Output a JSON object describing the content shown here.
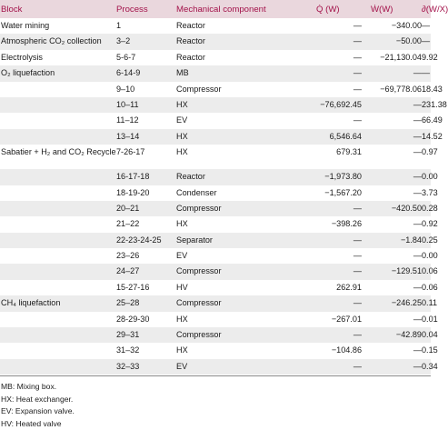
{
  "headers": {
    "block": "Block",
    "process": "Process",
    "mechanical": "Mechanical component",
    "q": "Q̇ (W)",
    "w": "Ẇ(W)",
    "ratio": "∂(W/X)"
  },
  "rows": [
    {
      "block": "Water mining",
      "process": "1",
      "mech": "Reactor",
      "q": "—",
      "w": "−340.00",
      "r": "—"
    },
    {
      "block": "Atmospheric CO₂ collection",
      "process": "3–2",
      "mech": "Reactor",
      "q": "—",
      "w": "−50.00",
      "r": "—"
    },
    {
      "block": "Electrolysis",
      "process": "5-6-7",
      "mech": "Reactor",
      "q": "—",
      "w": "−21,130.04",
      "r": "9.92"
    },
    {
      "block": "O₂ liquefaction",
      "process": "6-14-9",
      "mech": "MB",
      "q": "—",
      "w": "—",
      "r": "—"
    },
    {
      "block": "",
      "process": "9–10",
      "mech": "Compressor",
      "q": "—",
      "w": "−69,778.06",
      "r": "18.43"
    },
    {
      "block": "",
      "process": "10–11",
      "mech": "HX",
      "q": "−76,692.45",
      "w": "—",
      "r": "231.38"
    },
    {
      "block": "",
      "process": "11–12",
      "mech": "EV",
      "q": "—",
      "w": "—",
      "r": "66.49"
    },
    {
      "block": "",
      "process": "13–14",
      "mech": "HX",
      "q": "6,546.64",
      "w": "—",
      "r": "14.52"
    },
    {
      "block": "Sabatier + H₂ and CO₂ Recycle",
      "process": "7-26-17",
      "mech": "HX",
      "q": "679.31",
      "w": "—",
      "r": "0.97"
    },
    {
      "block": "",
      "process": "16-17-18",
      "mech": "Reactor",
      "q": "−1,973.80",
      "w": "—",
      "r": "0.00"
    },
    {
      "block": "",
      "process": "18-19-20",
      "mech": "Condenser",
      "q": "−1,567.20",
      "w": "—",
      "r": "3.73"
    },
    {
      "block": "",
      "process": "20–21",
      "mech": "Compressor",
      "q": "—",
      "w": "−420.50",
      "r": "0.28"
    },
    {
      "block": "",
      "process": "21–22",
      "mech": "HX",
      "q": "−398.26",
      "w": "—",
      "r": "0.92"
    },
    {
      "block": "",
      "process": "22-23-24-25",
      "mech": "Separator",
      "q": "—",
      "w": "−1.84",
      "r": "0.25"
    },
    {
      "block": "",
      "process": "23–26",
      "mech": "EV",
      "q": "—",
      "w": "—",
      "r": "0.00"
    },
    {
      "block": "",
      "process": "24–27",
      "mech": "Compressor",
      "q": "—",
      "w": "−129.51",
      "r": "0.06"
    },
    {
      "block": "",
      "process": "15-27-16",
      "mech": "HV",
      "q": "262.91",
      "w": "—",
      "r": "0.06"
    },
    {
      "block": "CH₄ liquefaction",
      "process": "25–28",
      "mech": "Compressor",
      "q": "—",
      "w": "−246.25",
      "r": "0.11"
    },
    {
      "block": "",
      "process": "28-29-30",
      "mech": "HX",
      "q": "−267.01",
      "w": "—",
      "r": "0.01"
    },
    {
      "block": "",
      "process": "29–31",
      "mech": "Compressor",
      "q": "—",
      "w": "−42.89",
      "r": "0.04"
    },
    {
      "block": "",
      "process": "31–32",
      "mech": "HX",
      "q": "−104.86",
      "w": "—",
      "r": "0.15"
    },
    {
      "block": "",
      "process": "32–33",
      "mech": "EV",
      "q": "—",
      "w": "—",
      "r": "0.34"
    }
  ],
  "notes": [
    "MB: Mixing box.",
    "HX: Heat exchanger.",
    "EV: Expansion valve.",
    "HV: Heated valve"
  ]
}
